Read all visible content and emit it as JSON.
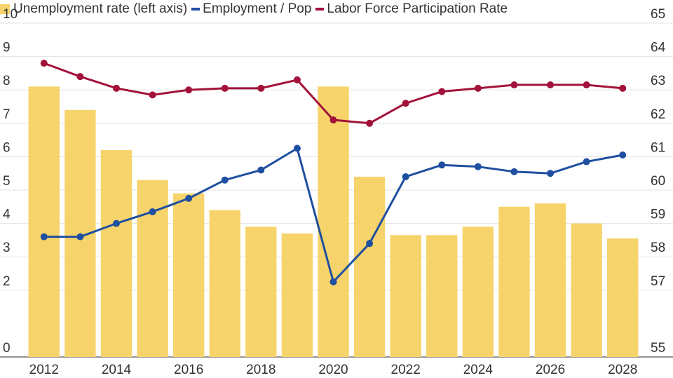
{
  "chart_data": {
    "type": "bar+line",
    "title": "",
    "legend_position": "top-left",
    "legend": [
      {
        "label": "Unemployment rate (left axis)",
        "color": "#f6d46b",
        "kind": "bar"
      },
      {
        "label": "Employment / Pop",
        "color": "#1f4fa0",
        "kind": "line"
      },
      {
        "label": "Labor Force Participation Rate",
        "color": "#a3123a",
        "kind": "line"
      }
    ],
    "x": [
      2012,
      2013,
      2014,
      2015,
      2016,
      2017,
      2018,
      2019,
      2020,
      2021,
      2022,
      2023,
      2024,
      2025,
      2026,
      2027,
      2028
    ],
    "x_tick_labels": [
      "2012",
      "2014",
      "2016",
      "2018",
      "2020",
      "2022",
      "2024",
      "2026",
      "2028"
    ],
    "left_axis": {
      "tick_labels": [
        "0",
        "2",
        "3",
        "4",
        "5",
        "6",
        "7",
        "8",
        "9",
        "10"
      ],
      "tick_values": [
        0,
        2,
        3,
        4,
        5,
        6,
        7,
        8,
        9,
        10
      ],
      "range": [
        0,
        10
      ]
    },
    "right_axis": {
      "tick_labels": [
        "55",
        "57",
        "58",
        "59",
        "60",
        "61",
        "62",
        "63",
        "64",
        "65"
      ],
      "tick_values": [
        55,
        57,
        58,
        59,
        60,
        61,
        62,
        63,
        64,
        65
      ],
      "range": [
        55,
        65
      ]
    },
    "series": [
      {
        "name": "Unemployment rate (left axis)",
        "type": "bar",
        "axis": "left",
        "color": "#f6d46b",
        "values": [
          8.1,
          7.4,
          6.2,
          5.3,
          4.9,
          4.4,
          3.9,
          3.7,
          8.1,
          5.4,
          3.65,
          3.65,
          3.9,
          4.5,
          4.6,
          4.0,
          3.55
        ]
      },
      {
        "name": "Employment / Pop",
        "type": "line",
        "axis": "right",
        "color": "#1f4fa0",
        "values": [
          58.6,
          58.6,
          59.0,
          59.35,
          59.75,
          60.3,
          60.6,
          61.25,
          57.25,
          58.4,
          60.4,
          60.75,
          60.7,
          60.55,
          60.5,
          60.85,
          61.05
        ]
      },
      {
        "name": "Labor Force Participation Rate",
        "type": "line",
        "axis": "right",
        "color": "#a3123a",
        "values": [
          63.8,
          63.4,
          63.05,
          62.85,
          63.0,
          63.05,
          63.05,
          63.3,
          62.1,
          62.0,
          62.6,
          62.95,
          63.05,
          63.15,
          63.15,
          63.15,
          63.05
        ]
      }
    ]
  }
}
